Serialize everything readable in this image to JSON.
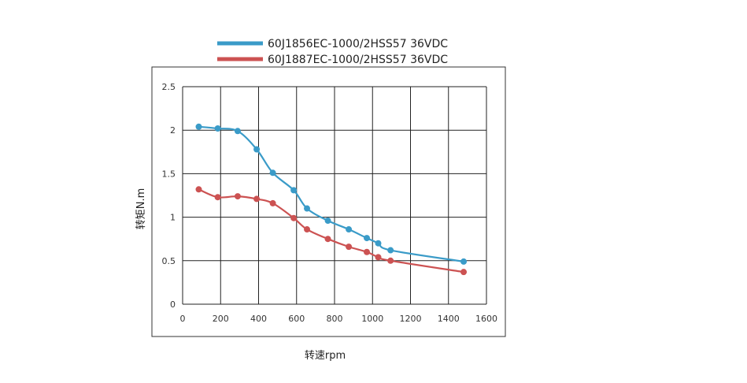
{
  "chart_data": {
    "type": "line",
    "title": "",
    "xlabel": "转速rpm",
    "ylabel": "转矩N.m",
    "xlim": [
      0,
      1600
    ],
    "ylim": [
      0,
      2.5
    ],
    "xticks": [
      "0",
      "200",
      "400",
      "600",
      "800",
      "1000",
      "1200",
      "1400",
      "1600"
    ],
    "yticks": [
      "0",
      "0.5",
      "1",
      "1.5",
      "2",
      "2.5"
    ],
    "grid": true,
    "legend_position": "top",
    "series": [
      {
        "name": "60J1856EC-1000/2HSS57  36VDC",
        "color": "#3a9bc8",
        "points": [
          [
            85,
            2.04
          ],
          [
            185,
            2.02
          ],
          [
            290,
            1.99
          ],
          [
            390,
            1.78
          ],
          [
            475,
            1.51
          ],
          [
            585,
            1.31
          ],
          [
            655,
            1.1
          ],
          [
            765,
            0.96
          ],
          [
            875,
            0.86
          ],
          [
            970,
            0.76
          ],
          [
            1030,
            0.7
          ],
          [
            1095,
            0.62
          ],
          [
            1480,
            0.49
          ]
        ]
      },
      {
        "name": "60J1887EC-1000/2HSS57  36VDC",
        "color": "#cc5252",
        "points": [
          [
            85,
            1.32
          ],
          [
            185,
            1.23
          ],
          [
            290,
            1.24
          ],
          [
            390,
            1.21
          ],
          [
            475,
            1.16
          ],
          [
            585,
            0.99
          ],
          [
            655,
            0.86
          ],
          [
            765,
            0.75
          ],
          [
            875,
            0.66
          ],
          [
            970,
            0.6
          ],
          [
            1030,
            0.54
          ],
          [
            1095,
            0.5
          ],
          [
            1480,
            0.37
          ]
        ]
      }
    ]
  }
}
